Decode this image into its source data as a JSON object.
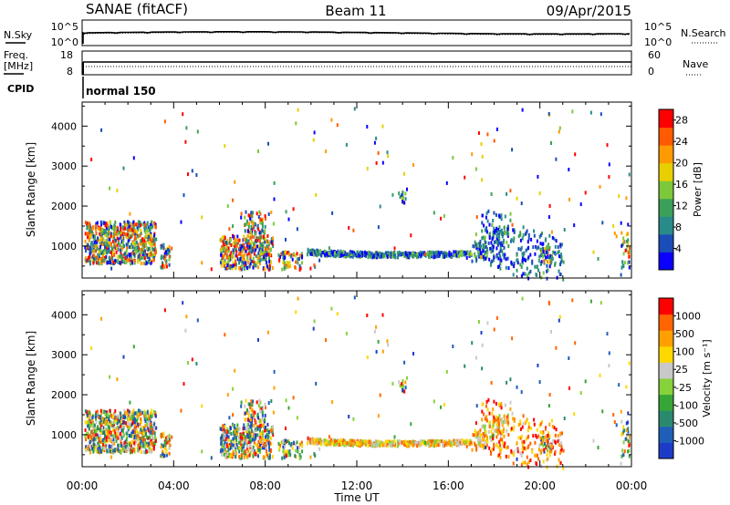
{
  "header": {
    "radar": "SANAE (fitACF)",
    "beam": "Beam 11",
    "date": "09/Apr/2015",
    "cpid_label": "CPID",
    "cpid_value": "normal 150"
  },
  "noise_panel": {
    "left_label": "N.Sky",
    "right_label": "N.Search",
    "left_ticks": [
      "10^5",
      "10^0"
    ],
    "right_ticks": [
      "10^5",
      "10^0"
    ]
  },
  "freq_panel": {
    "left_label_1": "Freq.",
    "left_label_2": "[MHz]",
    "right_label": "Nave",
    "left_ticks": [
      "18",
      "8"
    ],
    "right_ticks": [
      "60",
      "0"
    ]
  },
  "colors": {
    "power": [
      "#0a00ff",
      "#1b4db8",
      "#2a8b8b",
      "#3aa05a",
      "#7dc83a",
      "#e8d000",
      "#ff9a00",
      "#ff5a00",
      "#ff0000"
    ],
    "velocity": [
      "#1c3cc8",
      "#1f5fb8",
      "#2a8a70",
      "#36a636",
      "#86d23a",
      "#c8c8c8",
      "#ffd800",
      "#ffa000",
      "#ff6400",
      "#ff0000"
    ]
  },
  "chart_data": [
    {
      "type": "heatmap",
      "name": "power",
      "xlabel": "Time UT",
      "ylabel": "Slant Range [km]",
      "ylim": [
        200,
        4600
      ],
      "x_range": [
        "00:00",
        "00:00"
      ],
      "y_ticks": [
        "1000",
        "2000",
        "3000",
        "4000"
      ],
      "colorbar_label": "Power [dB]",
      "colorbar_ticks": [
        "4",
        "8",
        "12",
        "16",
        "20",
        "24",
        "28"
      ],
      "colorbar_range": [
        0,
        30
      ]
    },
    {
      "type": "heatmap",
      "name": "velocity",
      "xlabel": "Time UT",
      "ylabel": "Slant Range [km]",
      "ylim": [
        200,
        4600
      ],
      "x_range": [
        "00:00",
        "00:00"
      ],
      "y_ticks": [
        "1000",
        "2000",
        "3000",
        "4000"
      ],
      "colorbar_label": "Velocity [m s⁻¹]",
      "colorbar_ticks": [
        "1000",
        "500",
        "100",
        "25",
        "-25",
        "-100",
        "-500",
        "-1000"
      ]
    }
  ],
  "x_axis": {
    "ticks": [
      "00:00",
      "04:00",
      "08:00",
      "12:00",
      "16:00",
      "20:00",
      "00:00"
    ],
    "label": "Time UT"
  }
}
